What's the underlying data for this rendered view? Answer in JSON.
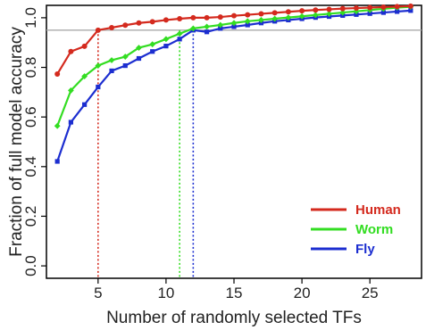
{
  "chart_data": {
    "type": "line",
    "title": "",
    "xlabel": "Number of randomly selected TFs",
    "ylabel": "Fraction of full model accuracy",
    "xlim": [
      1.2,
      28.8
    ],
    "ylim": [
      -0.05,
      1.05
    ],
    "x_ticks": [
      5,
      10,
      15,
      20,
      25
    ],
    "y_ticks": [
      0.0,
      0.2,
      0.4,
      0.6,
      0.8,
      1.0
    ],
    "x_tick_labels": [
      "5",
      "10",
      "15",
      "20",
      "25"
    ],
    "y_tick_labels": [
      "0.0",
      "0.2",
      "0.4",
      "0.6",
      "0.8",
      "1.0"
    ],
    "reference_line_y": 0.95,
    "grid": false,
    "legend_position": "bottom-right",
    "x": [
      2,
      3,
      4,
      5,
      6,
      7,
      8,
      9,
      10,
      11,
      12,
      13,
      14,
      15,
      16,
      17,
      18,
      19,
      20,
      21,
      22,
      23,
      24,
      25,
      26,
      27,
      28
    ],
    "series": [
      {
        "name": "Human",
        "color": "#d42a1e",
        "marker": "circle",
        "threshold_x": 5,
        "values": [
          0.773,
          0.864,
          0.885,
          0.95,
          0.96,
          0.97,
          0.979,
          0.984,
          0.991,
          0.996,
          1.0,
          1.0,
          1.003,
          1.008,
          1.012,
          1.016,
          1.02,
          1.024,
          1.028,
          1.031,
          1.034,
          1.037,
          1.039,
          1.041,
          1.043,
          1.045,
          1.047
        ]
      },
      {
        "name": "Worm",
        "color": "#33dd22",
        "marker": "diamond",
        "threshold_x": 11,
        "values": [
          0.564,
          0.707,
          0.764,
          0.807,
          0.829,
          0.843,
          0.879,
          0.893,
          0.914,
          0.936,
          0.957,
          0.964,
          0.971,
          0.979,
          0.986,
          0.991,
          0.996,
          1.001,
          1.006,
          1.011,
          1.016,
          1.021,
          1.026,
          1.031,
          1.036,
          1.041,
          1.044
        ]
      },
      {
        "name": "Fly",
        "color": "#1c2ed0",
        "marker": "square",
        "threshold_x": 12,
        "values": [
          0.421,
          0.579,
          0.65,
          0.721,
          0.786,
          0.807,
          0.836,
          0.864,
          0.886,
          0.914,
          0.95,
          0.943,
          0.957,
          0.964,
          0.971,
          0.979,
          0.986,
          0.991,
          0.996,
          1.001,
          1.005,
          1.009,
          1.013,
          1.017,
          1.021,
          1.025,
          1.029
        ]
      }
    ]
  }
}
